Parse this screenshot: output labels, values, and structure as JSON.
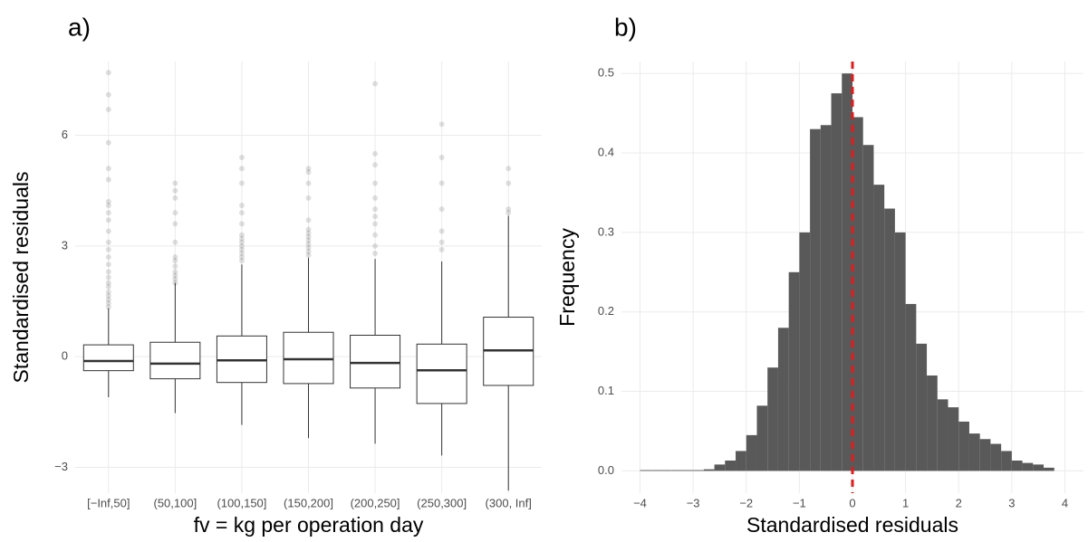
{
  "chart_data": [
    {
      "type": "boxplot",
      "title": "a)",
      "xlabel": "fv = kg per operation day",
      "ylabel": "Standardised residuals",
      "categories": [
        "[−Inf,50]",
        "(50,100]",
        "(100,150]",
        "(150,200]",
        "(200,250]",
        "(250,300]",
        "(300, Inf]"
      ],
      "boxes": [
        {
          "low": -1.1,
          "q1": -0.38,
          "median": -0.12,
          "q3": 0.32,
          "high": 1.31,
          "outliers": [
            1.35,
            1.45,
            1.55,
            1.65,
            1.75,
            1.9,
            2.0,
            2.15,
            2.3,
            2.5,
            2.7,
            2.9,
            3.1,
            3.4,
            3.7,
            3.9,
            4.1,
            4.2,
            4.8,
            5.1,
            5.8,
            6.7,
            7.1,
            7.7
          ]
        },
        {
          "low": -1.53,
          "q1": -0.6,
          "median": -0.19,
          "q3": 0.39,
          "high": 2.0,
          "outliers": [
            2.0,
            2.1,
            2.2,
            2.3,
            2.45,
            2.6,
            2.7,
            3.1,
            3.6,
            3.9,
            4.3,
            4.5,
            4.7
          ]
        },
        {
          "low": -1.85,
          "q1": -0.7,
          "median": -0.1,
          "q3": 0.56,
          "high": 2.5,
          "outliers": [
            2.6,
            2.7,
            2.8,
            2.9,
            3.0,
            3.1,
            3.2,
            3.3,
            3.6,
            3.9,
            4.1,
            4.7,
            5.1,
            5.4
          ]
        },
        {
          "low": -2.21,
          "q1": -0.73,
          "median": -0.07,
          "q3": 0.66,
          "high": 2.68,
          "outliers": [
            2.75,
            2.85,
            2.95,
            3.05,
            3.15,
            3.25,
            3.35,
            3.45,
            3.7,
            4.3,
            4.7,
            5.0,
            5.1
          ]
        },
        {
          "low": -2.36,
          "q1": -0.85,
          "median": -0.17,
          "q3": 0.58,
          "high": 2.65,
          "outliers": [
            2.8,
            3.0,
            3.3,
            3.6,
            3.8,
            4.0,
            4.3,
            4.7,
            5.2,
            5.5,
            7.4
          ]
        },
        {
          "low": -2.68,
          "q1": -1.27,
          "median": -0.37,
          "q3": 0.34,
          "high": 2.58,
          "outliers": [
            2.9,
            3.1,
            3.4,
            4.0,
            4.7,
            5.4,
            6.3
          ]
        },
        {
          "low": -3.63,
          "q1": -0.78,
          "median": 0.17,
          "q3": 1.07,
          "high": 3.82,
          "outliers": [
            3.9,
            4.0,
            4.7,
            5.1
          ]
        }
      ],
      "ylim": [
        -3.7,
        8.0
      ],
      "yticks": [
        {
          "value": -3,
          "label": "−3"
        },
        0,
        3,
        6
      ],
      "grid": true,
      "color": "#333333",
      "outlier_color": "#000000"
    },
    {
      "type": "histogram",
      "title": "b)",
      "xlabel": "Standardised residuals",
      "ylabel": "Frequency",
      "bins": [
        -4.0,
        -3.8,
        -3.6,
        -3.4,
        -3.2,
        -3.0,
        -2.8,
        -2.6,
        -2.4,
        -2.2,
        -2.0,
        -1.8,
        -1.6,
        -1.4,
        -1.2,
        -1.0,
        -0.8,
        -0.6,
        -0.4,
        -0.2,
        0,
        0.2,
        0.4,
        0.6,
        0.8,
        1.0,
        1.2,
        1.4,
        1.6,
        1.8,
        2.0,
        2.2,
        2.4,
        2.6,
        2.8,
        3.0,
        3.2,
        3.4,
        3.6,
        3.8
      ],
      "values": [
        0.001,
        0.001,
        0.001,
        0.001,
        0.001,
        0.001,
        0.002,
        0.008,
        0.013,
        0.025,
        0.045,
        0.082,
        0.13,
        0.18,
        0.25,
        0.3,
        0.43,
        0.435,
        0.475,
        0.5,
        0.445,
        0.41,
        0.36,
        0.33,
        0.3,
        0.21,
        0.16,
        0.12,
        0.09,
        0.08,
        0.062,
        0.047,
        0.04,
        0.034,
        0.025,
        0.013,
        0.01,
        0.008,
        0.004
      ],
      "color": "#595959",
      "vline": 0,
      "vline_color": "#e41a1c",
      "xlim": [
        -4.35,
        4.35
      ],
      "xticks": [
        {
          "value": -4,
          "label": "−4"
        },
        {
          "value": -3,
          "label": "−3"
        },
        {
          "value": -2,
          "label": "−2"
        },
        {
          "value": -1,
          "label": "−1"
        },
        0,
        1,
        2,
        3,
        4
      ],
      "ylim": [
        -0.028,
        0.515
      ],
      "yticks": [
        {
          "value": 0,
          "label": "0.0"
        },
        0.1,
        0.2,
        0.3,
        0.4,
        0.5
      ],
      "grid": true
    }
  ]
}
